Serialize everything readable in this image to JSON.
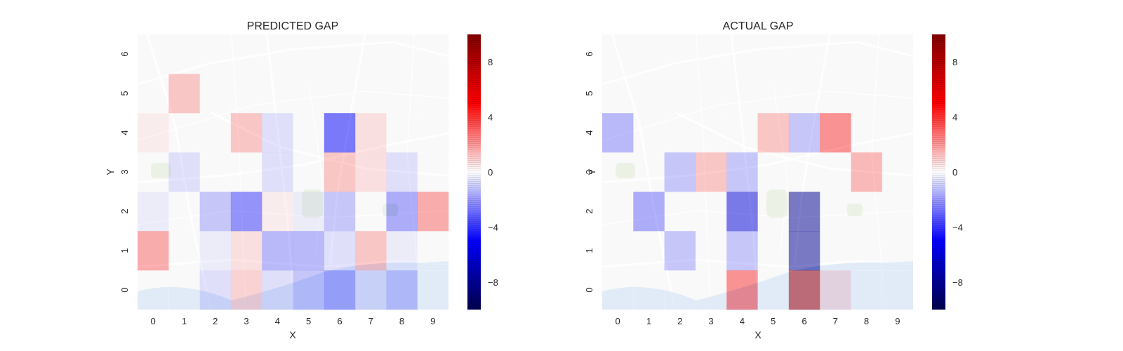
{
  "chart_data": [
    {
      "type": "heatmap",
      "title": "PREDICTED GAP",
      "xlabel": "X",
      "ylabel": "Y",
      "x": [
        0,
        1,
        2,
        3,
        4,
        5,
        6,
        7,
        8,
        9
      ],
      "y": [
        0,
        1,
        2,
        3,
        4,
        5,
        6
      ],
      "cell_alpha": 0.5,
      "background": "street map of Porto",
      "colormap": "seismic",
      "colorbar": {
        "range": [
          -10,
          10
        ],
        "ticks": [
          -8,
          -4,
          0,
          4,
          8
        ]
      },
      "values": [
        [
          0.0,
          0.0,
          -1.0,
          1.5,
          -1.0,
          -2.0,
          -3.0,
          -1.0,
          -2.0,
          0.0
        ],
        [
          3.0,
          0.0,
          -0.5,
          1.0,
          -2.5,
          -2.5,
          -1.0,
          2.0,
          -0.5,
          0.0
        ],
        [
          -0.5,
          0.0,
          -2.0,
          -4.0,
          0.5,
          -0.5,
          -2.0,
          0.0,
          -3.0,
          3.0
        ],
        [
          0.0,
          -1.0,
          0.0,
          0.0,
          -1.0,
          0.0,
          2.0,
          1.0,
          -1.0,
          0.0
        ],
        [
          0.5,
          0.0,
          0.0,
          2.0,
          -1.0,
          0.0,
          -5.0,
          1.0,
          0.0,
          0.0
        ],
        [
          0.0,
          2.0,
          0.0,
          0.0,
          0.0,
          0.0,
          0.0,
          0.0,
          0.0,
          0.0
        ],
        [
          0.0,
          0.0,
          0.0,
          0.0,
          0.0,
          0.0,
          0.0,
          0.0,
          0.0,
          0.0
        ]
      ]
    },
    {
      "type": "heatmap",
      "title": "ACTUAL GAP",
      "xlabel": "X",
      "ylabel": "Y",
      "x": [
        0,
        1,
        2,
        3,
        4,
        5,
        6,
        7,
        8,
        9
      ],
      "y": [
        0,
        1,
        2,
        3,
        4,
        5,
        6
      ],
      "cell_alpha": 0.5,
      "background": "street map of Porto",
      "colormap": "seismic",
      "colorbar": {
        "range": [
          -10,
          10
        ],
        "ticks": [
          -8,
          -4,
          0,
          4,
          8
        ]
      },
      "values": [
        [
          0.0,
          0.0,
          0.0,
          0.0,
          4.0,
          0.0,
          8.0,
          1.0,
          0.0,
          0.0
        ],
        [
          0.0,
          0.0,
          -2.0,
          0.0,
          -2.0,
          0.0,
          -8.0,
          0.0,
          0.0,
          0.0
        ],
        [
          0.0,
          -3.0,
          0.0,
          0.0,
          -6.0,
          0.0,
          -8.0,
          0.0,
          0.0,
          0.0
        ],
        [
          0.0,
          0.0,
          -2.0,
          2.0,
          -2.0,
          0.0,
          0.0,
          0.0,
          2.5,
          0.0
        ],
        [
          -2.5,
          0.0,
          0.0,
          0.0,
          0.0,
          2.0,
          -2.0,
          4.0,
          0.0,
          0.0
        ],
        [
          0.0,
          0.0,
          0.0,
          0.0,
          0.0,
          0.0,
          0.0,
          0.0,
          0.0,
          0.0
        ],
        [
          0.0,
          0.0,
          0.0,
          0.0,
          0.0,
          0.0,
          0.0,
          0.0,
          0.0,
          0.0
        ]
      ]
    }
  ]
}
